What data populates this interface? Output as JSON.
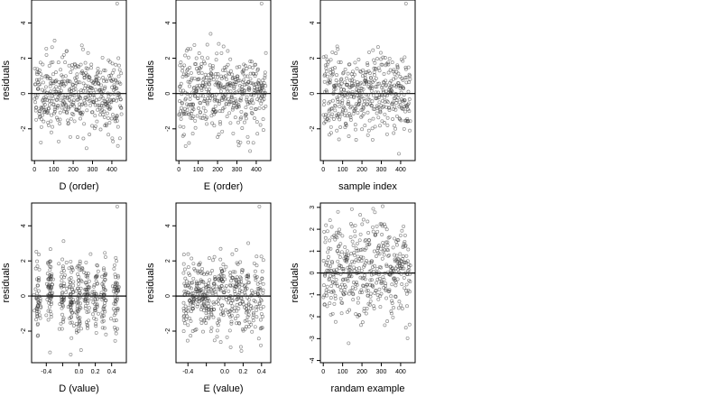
{
  "chart_data": [
    {
      "type": "scatter",
      "xlabel": "D (order)",
      "ylabel": "residuals",
      "xlim": [
        -15,
        475
      ],
      "ylim": [
        -3.8,
        5.3
      ],
      "xticks": [
        0,
        100,
        200,
        300,
        400
      ],
      "yticks": [
        -2,
        0,
        2,
        4
      ],
      "hline": 0,
      "points": {
        "n": 450,
        "x_range": [
          1,
          450
        ],
        "pattern": "order",
        "seed": 11
      }
    },
    {
      "type": "scatter",
      "xlabel": "E (order)",
      "ylabel": "residuals",
      "xlim": [
        -15,
        475
      ],
      "ylim": [
        -3.8,
        5.3
      ],
      "xticks": [
        0,
        100,
        200,
        300,
        400
      ],
      "yticks": [
        -2,
        0,
        2,
        4
      ],
      "hline": 0,
      "points": {
        "n": 450,
        "x_range": [
          1,
          450
        ],
        "pattern": "order",
        "seed": 23
      }
    },
    {
      "type": "scatter",
      "xlabel": "sample index",
      "ylabel": "residuals",
      "xlim": [
        -15,
        475
      ],
      "ylim": [
        -3.8,
        5.3
      ],
      "xticks": [
        0,
        100,
        200,
        300,
        400
      ],
      "yticks": [
        -2,
        0,
        2,
        4
      ],
      "hline": 0,
      "points": {
        "n": 450,
        "x_range": [
          1,
          450
        ],
        "pattern": "order",
        "seed": 37
      }
    },
    {
      "type": "scatter",
      "xlabel": "D (value)",
      "ylabel": "residuals",
      "xlim": [
        -0.58,
        0.58
      ],
      "ylim": [
        -3.8,
        5.3
      ],
      "xticks": [
        -0.4,
        -0.2,
        0.0,
        0.2,
        0.4
      ],
      "xtick_labels": [
        "-0.4",
        "",
        "0.0",
        "0.2",
        "0.4"
      ],
      "yticks": [
        -2,
        0,
        2,
        4
      ],
      "hline": 0,
      "points": {
        "n": 450,
        "x_range": [
          -0.52,
          0.52
        ],
        "pattern": "clustered",
        "clusters": [
          -0.5,
          -0.35,
          -0.2,
          -0.1,
          0.0,
          0.1,
          0.2,
          0.3,
          0.45
        ],
        "seed": 41
      }
    },
    {
      "type": "scatter",
      "xlabel": "E (value)",
      "ylabel": "residuals",
      "xlim": [
        -0.53,
        0.5
      ],
      "ylim": [
        -3.8,
        5.3
      ],
      "xticks": [
        -0.4,
        -0.2,
        0.0,
        0.2,
        0.4
      ],
      "xtick_labels": [
        "-0.4",
        "",
        "0.0",
        "0.2",
        "0.4"
      ],
      "yticks": [
        -2,
        0,
        2,
        4
      ],
      "hline": 0,
      "points": {
        "n": 450,
        "x_range": [
          -0.45,
          0.42
        ],
        "pattern": "dense-left",
        "seed": 53
      }
    },
    {
      "type": "scatter",
      "xlabel": "randam example",
      "ylabel": "residuals",
      "xlim": [
        -15,
        475
      ],
      "ylim": [
        -4.1,
        3.2
      ],
      "xticks": [
        0,
        100,
        200,
        300,
        400
      ],
      "yticks": [
        -4,
        -3,
        -2,
        -1,
        0,
        1,
        2,
        3
      ],
      "hline": 0,
      "points": {
        "n": 450,
        "x_range": [
          1,
          450
        ],
        "pattern": "order",
        "seed": 67
      }
    }
  ]
}
